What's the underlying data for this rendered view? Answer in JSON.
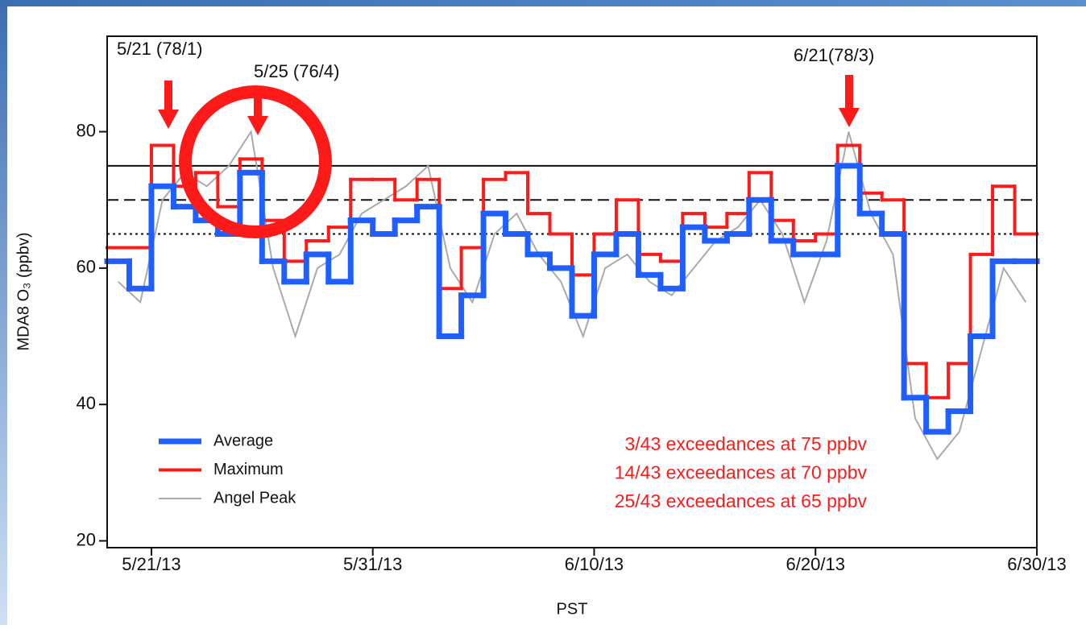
{
  "chart_data": {
    "type": "step",
    "y_label": "MDA8 O₃ (ppbv)",
    "x_label": "PST",
    "x": [
      "5/19/13",
      "5/20/13",
      "5/21/13",
      "5/22/13",
      "5/23/13",
      "5/24/13",
      "5/25/13",
      "5/26/13",
      "5/27/13",
      "5/28/13",
      "5/29/13",
      "5/30/13",
      "5/31/13",
      "6/1/13",
      "6/2/13",
      "6/3/13",
      "6/4/13",
      "6/5/13",
      "6/6/13",
      "6/7/13",
      "6/8/13",
      "6/9/13",
      "6/10/13",
      "6/11/13",
      "6/12/13",
      "6/13/13",
      "6/14/13",
      "6/15/13",
      "6/16/13",
      "6/17/13",
      "6/18/13",
      "6/19/13",
      "6/20/13",
      "6/21/13",
      "6/22/13",
      "6/23/13",
      "6/24/13",
      "6/25/13",
      "6/26/13",
      "6/27/13",
      "6/28/13",
      "6/29/13"
    ],
    "series": [
      {
        "name": "Angel Peak",
        "color": "#aaaaaa",
        "width": 2,
        "values": [
          58,
          55,
          70,
          74,
          72,
          75,
          80,
          60,
          50,
          60,
          62,
          68,
          70,
          72,
          75,
          60,
          55,
          65,
          68,
          62,
          58,
          50,
          60,
          62,
          58,
          56,
          60,
          64,
          66,
          70,
          65,
          55,
          64,
          80,
          68,
          62,
          38,
          32,
          36,
          48,
          60,
          55
        ]
      },
      {
        "name": "Maximum",
        "color": "#ff1a1a",
        "width": 4,
        "values": [
          63,
          63,
          78,
          72,
          74,
          69,
          76,
          67,
          61,
          64,
          66,
          73,
          73,
          70,
          73,
          57,
          63,
          73,
          74,
          68,
          65,
          59,
          65,
          70,
          62,
          61,
          68,
          66,
          68,
          74,
          67,
          64,
          65,
          78,
          71,
          70,
          46,
          41,
          46,
          62,
          72,
          65
        ]
      },
      {
        "name": "Average",
        "color": "#1f5fff",
        "width": 7,
        "values": [
          61,
          57,
          72,
          69,
          67,
          65,
          74,
          61,
          58,
          62,
          58,
          67,
          65,
          67,
          69,
          50,
          56,
          68,
          65,
          62,
          60,
          53,
          62,
          65,
          59,
          57,
          66,
          64,
          65,
          70,
          64,
          62,
          62,
          75,
          68,
          65,
          41,
          36,
          39,
          50,
          61,
          61
        ]
      }
    ],
    "ref_lines": [
      {
        "value": 75,
        "style": "solid"
      },
      {
        "value": 70,
        "style": "dashed"
      },
      {
        "value": 65,
        "style": "dotted"
      }
    ],
    "xlim": [
      "5/19/13",
      "6/30/13"
    ],
    "xticks": [
      "5/21/13",
      "5/31/13",
      "6/10/13",
      "6/20/13",
      "6/30/13"
    ],
    "ylim": [
      19,
      94
    ],
    "yticks": [
      20,
      40,
      60,
      80
    ],
    "legend": "lower left",
    "annotations": [
      "5/21 (78/1)",
      "5/25 (76/4)",
      "6/21(78/3)"
    ],
    "notes": [
      "3/43 exceedances at 75 ppbv",
      "14/43 exceedances at 70 ppbv",
      "25/43 exceedances at 65 ppbv"
    ],
    "note_color": "#ff1a1a"
  }
}
